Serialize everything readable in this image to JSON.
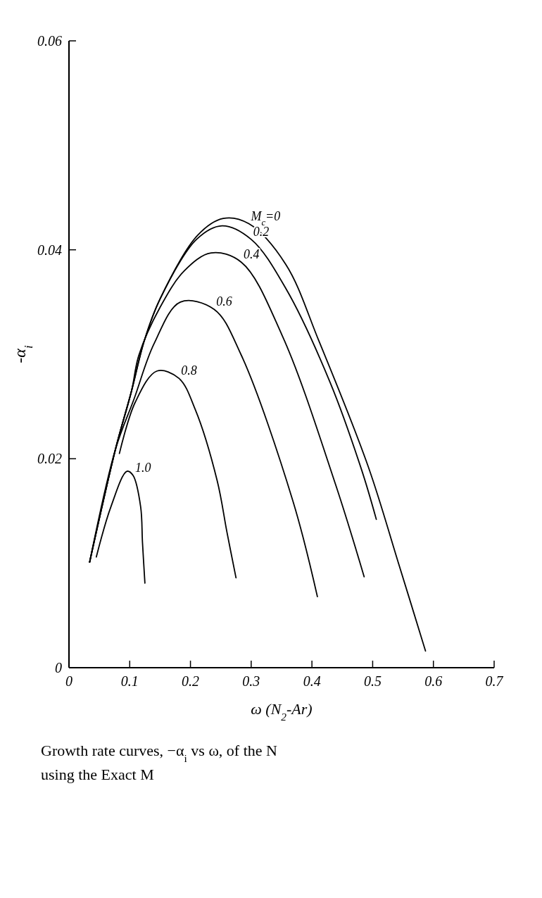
{
  "chart_data": {
    "type": "line",
    "xlabel": "ω (N$_{2}$-Ar)",
    "ylabel": "-α$_{i}$",
    "xlim": [
      0,
      0.7
    ],
    "xticks": [
      0,
      0.1,
      0.2,
      0.3,
      0.4,
      0.5,
      0.6,
      0.7
    ],
    "ylim": [
      0,
      0.06
    ],
    "yticks": [
      0,
      0.02,
      0.04,
      0.06
    ],
    "series": [
      {
        "name": "M$_{c}$=0",
        "color": "#000000",
        "x": [
          0.034,
          0.0765,
          0.103,
          0.124,
          0.15,
          0.212,
          0.254,
          0.296,
          0.357,
          0.412,
          0.493,
          0.542,
          0.587
        ],
        "values": [
          0.0101,
          0.0209,
          0.0265,
          0.0313,
          0.0353,
          0.0414,
          0.043,
          0.0425,
          0.0386,
          0.0312,
          0.0192,
          0.0101,
          0.0016
        ]
      },
      {
        "name": "0.2",
        "color": "#000000",
        "x": [
          0.034,
          0.0765,
          0.103,
          0.124,
          0.15,
          0.21,
          0.252,
          0.3,
          0.357,
          0.43,
          0.482,
          0.506
        ],
        "values": [
          0.0101,
          0.0209,
          0.0265,
          0.0313,
          0.0353,
          0.041,
          0.0423,
          0.041,
          0.0363,
          0.0273,
          0.0189,
          0.0142
        ]
      },
      {
        "name": "0.4",
        "color": "#000000",
        "x": [
          0.034,
          0.0765,
          0.103,
          0.115,
          0.15,
          0.19,
          0.234,
          0.284,
          0.351,
          0.438,
          0.486
        ],
        "values": [
          0.0101,
          0.0209,
          0.0265,
          0.0299,
          0.0345,
          0.038,
          0.0397,
          0.0388,
          0.0318,
          0.0177,
          0.0087
        ]
      },
      {
        "name": "0.6",
        "color": "#000000",
        "x": [
          0.034,
          0.0765,
          0.107,
          0.14,
          0.1835,
          0.239,
          0.283,
          0.369,
          0.409
        ],
        "values": [
          0.0101,
          0.0209,
          0.0257,
          0.031,
          0.035,
          0.0343,
          0.03,
          0.0159,
          0.0068
        ]
      },
      {
        "name": "0.8",
        "color": "#000000",
        "x": [
          0.083,
          0.109,
          0.145,
          0.181,
          0.208,
          0.244,
          0.26,
          0.275
        ],
        "values": [
          0.0205,
          0.0254,
          0.0284,
          0.0277,
          0.0247,
          0.0179,
          0.013,
          0.0086
        ]
      },
      {
        "name": "1.0",
        "color": "#000000",
        "x": [
          0.045,
          0.069,
          0.0955,
          0.1055,
          0.118,
          0.121,
          0.125
        ],
        "values": [
          0.0106,
          0.0154,
          0.0188,
          0.0184,
          0.0154,
          0.012,
          0.0081
        ]
      }
    ],
    "annotations": [
      "Growth rate curves, −α$_{i}$ vs ω, of the N",
      "using the Exact M"
    ]
  }
}
